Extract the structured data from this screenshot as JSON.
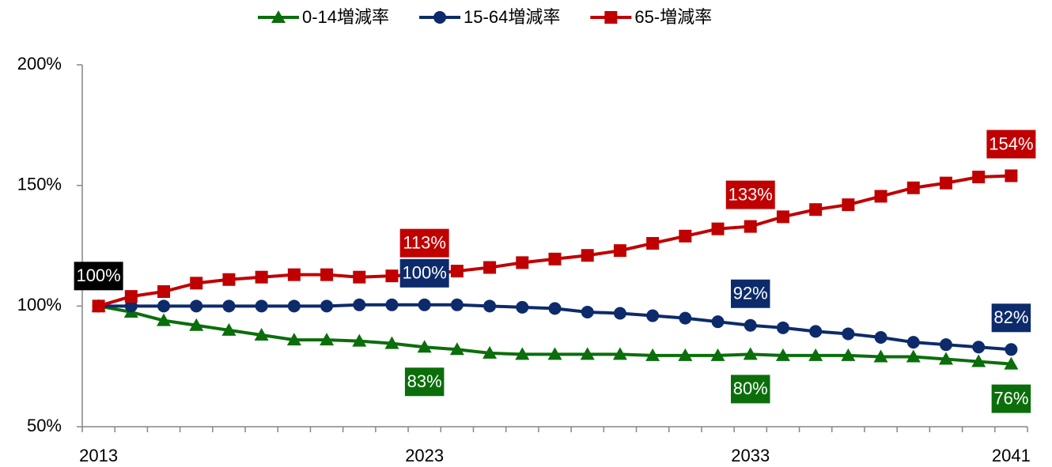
{
  "chart_data": {
    "type": "line",
    "categories": [
      "2013",
      null,
      null,
      null,
      null,
      null,
      null,
      null,
      null,
      null,
      "2023",
      null,
      null,
      null,
      null,
      null,
      null,
      null,
      null,
      null,
      "2033",
      null,
      null,
      null,
      null,
      null,
      null,
      null,
      "2041"
    ],
    "ylim": [
      50,
      200
    ],
    "yticks": [
      {
        "value": 50,
        "label": "50%"
      },
      {
        "value": 100,
        "label": "100%"
      },
      {
        "value": 150,
        "label": "150%"
      },
      {
        "value": 200,
        "label": "200%"
      }
    ],
    "grid": false,
    "legend": "top",
    "series": [
      {
        "name": "0-14増減率",
        "color": "#0b6e0b",
        "marker": "triangle",
        "label_position": "below",
        "values": [
          100,
          97.5,
          94,
          92,
          90,
          88,
          86,
          86,
          85.5,
          84.5,
          83,
          82,
          80.5,
          80,
          80,
          80,
          80,
          79.5,
          79.5,
          79.5,
          80,
          79.5,
          79.5,
          79.5,
          79,
          79,
          78,
          77,
          76
        ],
        "value_labels": [
          null,
          null,
          null,
          null,
          null,
          null,
          null,
          null,
          null,
          null,
          "83%",
          null,
          null,
          null,
          null,
          null,
          null,
          null,
          null,
          null,
          "80%",
          null,
          null,
          null,
          null,
          null,
          null,
          null,
          "76%"
        ]
      },
      {
        "name": "15-64増減率",
        "color": "#0d2b6b",
        "marker": "circle",
        "label_position": "above",
        "values": [
          100,
          100,
          100,
          100,
          100,
          100,
          100,
          100,
          100.5,
          100.5,
          100.5,
          100.5,
          100,
          99.5,
          99,
          97.5,
          97,
          96,
          95,
          93.5,
          92,
          91,
          89.5,
          88.5,
          87,
          85,
          84,
          83,
          82
        ],
        "value_labels": [
          null,
          null,
          null,
          null,
          null,
          null,
          null,
          null,
          null,
          null,
          "100%",
          null,
          null,
          null,
          null,
          null,
          null,
          null,
          null,
          null,
          "92%",
          null,
          null,
          null,
          null,
          null,
          null,
          null,
          "82%"
        ]
      },
      {
        "name": "65-増減率",
        "color": "#c00000",
        "marker": "square",
        "label_position": "above",
        "values": [
          100,
          104,
          106,
          109.5,
          111,
          112,
          113,
          113,
          112,
          112.5,
          113,
          114.5,
          116,
          118,
          119.5,
          121,
          123,
          126,
          129,
          132,
          133,
          137,
          140,
          142,
          145.5,
          149,
          151,
          153.5,
          154
        ],
        "value_labels": [
          null,
          null,
          null,
          null,
          null,
          null,
          null,
          null,
          null,
          null,
          "113%",
          null,
          null,
          null,
          null,
          null,
          null,
          null,
          null,
          null,
          "133%",
          null,
          null,
          null,
          null,
          null,
          null,
          null,
          "154%"
        ]
      }
    ],
    "annotations": [
      {
        "text": "100%",
        "category": "2013",
        "value": 100,
        "color": "#000000"
      }
    ]
  }
}
